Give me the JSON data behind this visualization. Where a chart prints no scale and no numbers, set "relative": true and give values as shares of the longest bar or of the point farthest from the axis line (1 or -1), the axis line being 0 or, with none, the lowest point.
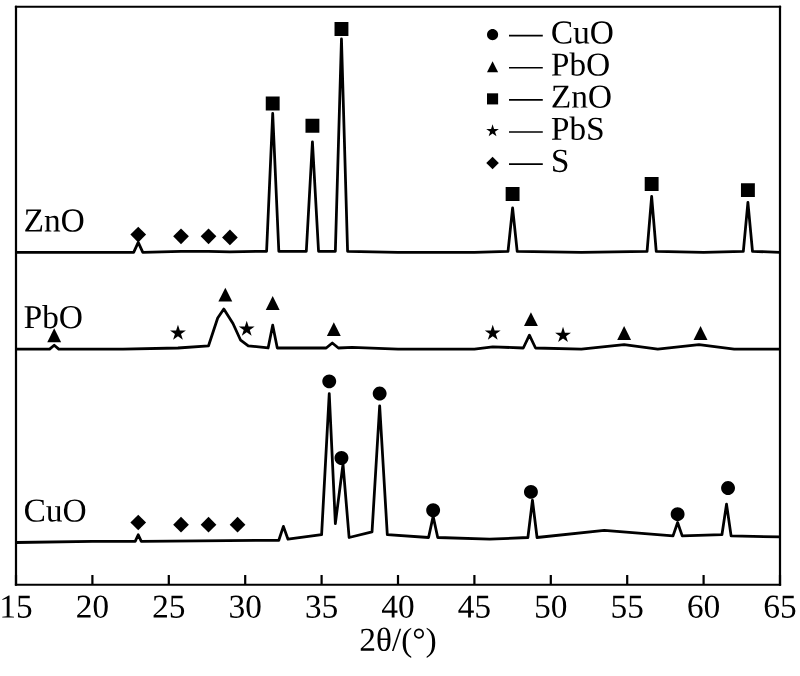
{
  "chart_data": {
    "type": "line",
    "relative": true,
    "xlabel": "2θ/(°)",
    "xlim": [
      15,
      65
    ],
    "xticks": [
      15,
      20,
      25,
      30,
      35,
      40,
      45,
      50,
      55,
      60,
      65
    ],
    "tick_labels": "x",
    "grid": false,
    "legend": "top right",
    "marker": "none",
    "line_style": "solid",
    "series": [
      {
        "name": "ZnO",
        "color": "#000000",
        "x": [
          15,
          20,
          22.7,
          23.0,
          23.3,
          25.8,
          27.6,
          29,
          31.4,
          31.8,
          32.2,
          34.0,
          34.4,
          34.8,
          35.9,
          36.3,
          36.7,
          40,
          45,
          47.2,
          47.5,
          47.8,
          52,
          56.3,
          56.6,
          56.9,
          60,
          62.6,
          62.9,
          63.2,
          65
        ],
        "values": [
          0.598,
          0.598,
          0.598,
          0.616,
          0.598,
          0.6,
          0.6,
          0.599,
          0.6,
          0.848,
          0.6,
          0.6,
          0.797,
          0.6,
          0.6,
          0.982,
          0.6,
          0.598,
          0.598,
          0.6,
          0.678,
          0.6,
          0.598,
          0.6,
          0.699,
          0.6,
          0.598,
          0.6,
          0.688,
          0.6,
          0.598
        ]
      },
      {
        "name": "PbO",
        "color": "#000000",
        "x": [
          15,
          17.2,
          17.5,
          17.8,
          22,
          25.6,
          27.6,
          28.2,
          28.6,
          29.2,
          29.7,
          30.2,
          31.5,
          31.8,
          32.1,
          35.3,
          35.7,
          36.1,
          37,
          40,
          45,
          46.2,
          48.2,
          48.6,
          49,
          52,
          54.8,
          57,
          59.7,
          62,
          65
        ],
        "values": [
          0.424,
          0.424,
          0.431,
          0.424,
          0.424,
          0.426,
          0.43,
          0.48,
          0.496,
          0.47,
          0.44,
          0.43,
          0.426,
          0.467,
          0.426,
          0.426,
          0.435,
          0.426,
          0.427,
          0.424,
          0.424,
          0.428,
          0.426,
          0.449,
          0.426,
          0.424,
          0.432,
          0.424,
          0.432,
          0.424,
          0.424
        ]
      },
      {
        "name": "CuO",
        "color": "#000000",
        "x": [
          15,
          20,
          22.8,
          23.0,
          23.2,
          27,
          32.2,
          32.5,
          32.8,
          35.0,
          35.5,
          35.9,
          36.4,
          36.8,
          38.3,
          38.8,
          39.3,
          42.0,
          42.3,
          42.6,
          46,
          48.5,
          48.8,
          49.1,
          53.5,
          58.0,
          58.3,
          58.6,
          61.2,
          61.5,
          61.8,
          65
        ],
        "values": [
          0.076,
          0.078,
          0.078,
          0.09,
          0.078,
          0.079,
          0.08,
          0.105,
          0.082,
          0.09,
          0.344,
          0.11,
          0.217,
          0.085,
          0.095,
          0.322,
          0.09,
          0.085,
          0.123,
          0.085,
          0.082,
          0.085,
          0.152,
          0.085,
          0.098,
          0.088,
          0.112,
          0.088,
          0.09,
          0.145,
          0.088,
          0.086
        ]
      },
      {
        "name": "— CuO",
        "type": "scatter",
        "marker": "circle",
        "color": "#000000",
        "x": [
          35.5,
          36.3,
          38.8,
          42.3,
          48.7,
          58.3,
          61.6
        ],
        "values": [
          0.366,
          0.228,
          0.344,
          0.134,
          0.167,
          0.127,
          0.174
        ]
      },
      {
        "name": "— PbO",
        "type": "scatter",
        "marker": "triangle",
        "color": "#000000",
        "x": [
          17.5,
          28.7,
          31.8,
          35.8,
          48.7,
          54.8,
          59.8
        ],
        "values": [
          0.449,
          0.522,
          0.507,
          0.46,
          0.478,
          0.453,
          0.453
        ]
      },
      {
        "name": "— ZnO",
        "type": "scatter",
        "marker": "square",
        "color": "#000000",
        "x": [
          31.8,
          34.4,
          36.3,
          47.5,
          56.6,
          62.9
        ],
        "values": [
          0.866,
          0.826,
          1.0,
          0.703,
          0.721,
          0.71
        ]
      },
      {
        "name": "— PbS",
        "type": "scatter",
        "marker": "star",
        "color": "#000000",
        "x": [
          25.6,
          30.1,
          46.2,
          50.8
        ],
        "values": [
          0.453,
          0.46,
          0.453,
          0.449
        ]
      },
      {
        "name": "— S",
        "type": "scatter",
        "marker": "diamond",
        "color": "#000000",
        "x": [
          23.0,
          25.8,
          27.6,
          29.0,
          23.0,
          25.8,
          27.6,
          29.5
        ],
        "values": [
          0.63,
          0.627,
          0.627,
          0.625,
          0.112,
          0.108,
          0.108,
          0.108
        ]
      }
    ]
  }
}
